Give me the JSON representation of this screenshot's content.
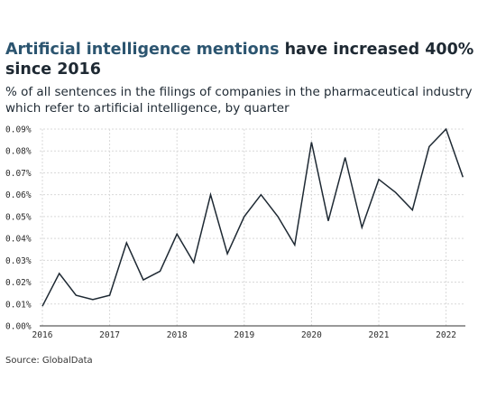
{
  "header": {
    "title_highlight": "Artificial intelligence mentions",
    "title_rest": " have increased 400% since 2016",
    "subtitle": "% of all sentences in the filings of companies in the pharmaceutical industry which refer to artificial intelligence, by quarter"
  },
  "footer": {
    "source": "Source: GlobalData"
  },
  "colors": {
    "title_accent": "#2c5570",
    "text": "#1e2933",
    "line": "#1e2933",
    "grid": "#d9d9d9"
  },
  "chart_data": {
    "type": "line",
    "title": "Artificial intelligence mentions have increased 400% since 2016",
    "subtitle": "% of all sentences in the filings of companies in the pharmaceutical industry which refer to artificial intelligence, by quarter",
    "xlabel": "",
    "ylabel": "",
    "ylim": [
      0,
      0.09
    ],
    "y_ticks": [
      "0.00%",
      "0.01%",
      "0.02%",
      "0.03%",
      "0.04%",
      "0.05%",
      "0.06%",
      "0.07%",
      "0.08%",
      "0.09%"
    ],
    "x_ticks": [
      "2016",
      "2017",
      "2018",
      "2019",
      "2020",
      "2021",
      "2022"
    ],
    "grid": true,
    "x": [
      "2016 Q1",
      "2016 Q2",
      "2016 Q3",
      "2016 Q4",
      "2017 Q1",
      "2017 Q2",
      "2017 Q3",
      "2017 Q4",
      "2018 Q1",
      "2018 Q2",
      "2018 Q3",
      "2018 Q4",
      "2019 Q1",
      "2019 Q2",
      "2019 Q3",
      "2019 Q4",
      "2020 Q1",
      "2020 Q2",
      "2020 Q3",
      "2020 Q4",
      "2021 Q1",
      "2021 Q2",
      "2021 Q3",
      "2021 Q4",
      "2022 Q1",
      "2022 Q2"
    ],
    "series": [
      {
        "values": [
          0.009,
          0.024,
          0.014,
          0.012,
          0.014,
          0.038,
          0.021,
          0.025,
          0.042,
          0.029,
          0.06,
          0.033,
          0.05,
          0.06,
          0.05,
          0.037,
          0.084,
          0.048,
          0.077,
          0.045,
          0.067,
          0.061,
          0.053,
          0.082,
          0.09,
          0.068
        ]
      }
    ]
  }
}
